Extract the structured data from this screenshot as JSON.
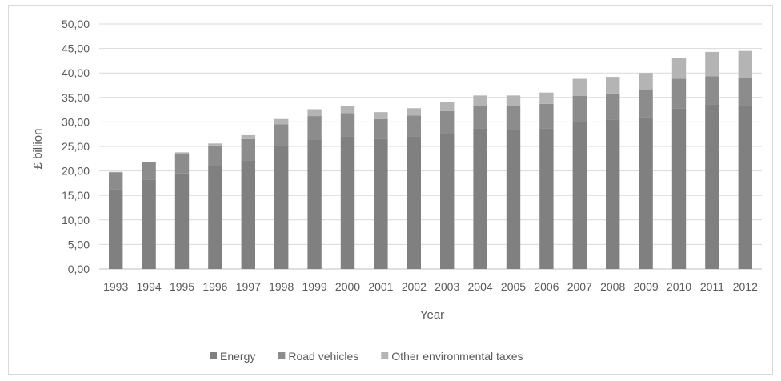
{
  "chart_data": {
    "type": "bar",
    "stacked": true,
    "categories": [
      "1993",
      "1994",
      "1995",
      "1996",
      "1997",
      "1998",
      "1999",
      "2000",
      "2001",
      "2002",
      "2003",
      "2004",
      "2005",
      "2006",
      "2007",
      "2008",
      "2009",
      "2010",
      "2011",
      "2012"
    ],
    "series": [
      {
        "name": "Energy",
        "color": "#808080",
        "values": [
          16.3,
          18.2,
          19.5,
          21.0,
          22.2,
          25.0,
          26.4,
          27.1,
          26.6,
          27.1,
          27.6,
          28.6,
          28.4,
          28.7,
          30.0,
          30.4,
          31.0,
          32.8,
          33.5,
          33.2
        ]
      },
      {
        "name": "Road vehicles",
        "color": "#8c8c8c",
        "values": [
          3.4,
          3.6,
          4.0,
          4.2,
          4.3,
          4.5,
          4.8,
          4.7,
          4.0,
          4.2,
          4.6,
          4.7,
          4.9,
          5.0,
          5.3,
          5.4,
          5.5,
          6.0,
          5.8,
          5.7
        ]
      },
      {
        "name": "Other environmental taxes",
        "color": "#b4b4b4",
        "values": [
          0.1,
          0.1,
          0.3,
          0.4,
          0.8,
          1.1,
          1.4,
          1.4,
          1.4,
          1.5,
          1.8,
          2.1,
          2.1,
          2.3,
          3.5,
          3.4,
          3.5,
          4.2,
          5.0,
          5.6
        ]
      }
    ],
    "yticks": [
      "0,00",
      "5,00",
      "10,00",
      "15,00",
      "20,00",
      "25,00",
      "30,00",
      "35,00",
      "40,00",
      "45,00",
      "50,00"
    ],
    "ylim": [
      0,
      50
    ],
    "xlabel": "Year",
    "ylabel": "£ billion",
    "grid": true,
    "legend": "bottom"
  }
}
